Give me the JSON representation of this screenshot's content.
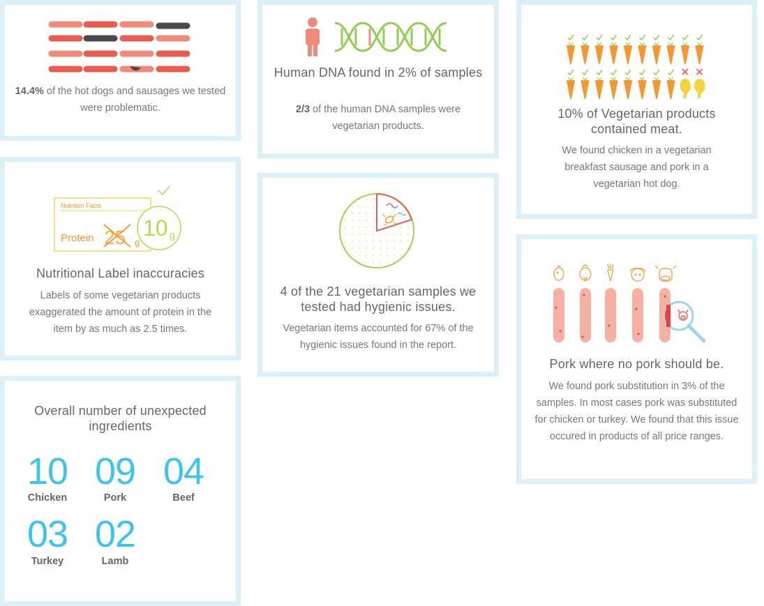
{
  "cards": {
    "hotdogs": {
      "stat": "14.4%",
      "text": " of the hot dogs and sausages we tested were problematic."
    },
    "human_dna": {
      "title": "Human DNA found in 2% of samples",
      "stat": "2/3",
      "text": " of the human DNA samples were vegetarian products."
    },
    "vegetarian_meat": {
      "title": "10% of Vegetarian products contained meat.",
      "text": "We found chicken in a vegetarian breakfast sausage and pork in a vegetarian hot dog."
    },
    "nutrition": {
      "label_heading": "Nutrition Facts",
      "label_protein": "Protein",
      "label_crossed": "25",
      "label_unit": "g",
      "label_actual": "10",
      "label_actual_unit": "g",
      "title": "Nutritional Label inaccuracies",
      "text": "Labels of some vegetarian products exaggerated the amount of protein in the item by as much as 2.5 times."
    },
    "hygiene": {
      "title": "4 of the 21 vegetarian samples we tested had hygienic issues.",
      "text": "Vegetarian items accounted for 67% of the hygienic issues found in the report."
    },
    "pork": {
      "title": "Pork where no pork should be.",
      "text": "We found pork substitution in 3% of the samples. In most cases pork was substituted for chicken or turkey. We found that this issue occured in products of all price ranges."
    },
    "counts": {
      "title": "Overall number of unexpected ingredients",
      "items": [
        {
          "value": "10",
          "label": "Chicken"
        },
        {
          "value": "09",
          "label": "Pork"
        },
        {
          "value": "04",
          "label": "Beef"
        },
        {
          "value": "03",
          "label": "Turkey"
        },
        {
          "value": "02",
          "label": "Lamb"
        }
      ]
    }
  },
  "colors": {
    "border": "#dcf0f8",
    "accent_blue": "#3cc4ee",
    "sausage_pink": "#f08b7b",
    "sausage_red": "#ea5c50",
    "sausage_dark": "#4a4a4a",
    "dna_green": "#8fcf4f",
    "human_pink": "#f08b7b",
    "carrot_orange": "#f5962f",
    "check_green": "#9ad25a",
    "cross_red": "#ea5c50",
    "chicken_yellow": "#f5d33a",
    "label_yellow": "#f4d55a",
    "label_orange": "#f5962f",
    "label_green": "#b6d84e",
    "hygiene_green": "#a6cf4c",
    "hygiene_red": "#ea5c50",
    "pork_sausage": "#f7b1a3",
    "pork_red": "#e8433a",
    "magnifier_blue": "#9fd6ea"
  },
  "icons": [
    "sausages-icon",
    "human-figure-icon",
    "dna-helix-icon",
    "carrot-icon",
    "check-icon",
    "cross-icon",
    "chicken-leg-icon",
    "nutrition-label-icon",
    "checkmark-icon",
    "petri-dish-icon",
    "bacteria-icon",
    "chicken-head-icon",
    "turkey-head-icon",
    "carrot-head-icon",
    "lamb-head-icon",
    "cow-head-icon",
    "magnifier-icon",
    "pig-icon"
  ]
}
